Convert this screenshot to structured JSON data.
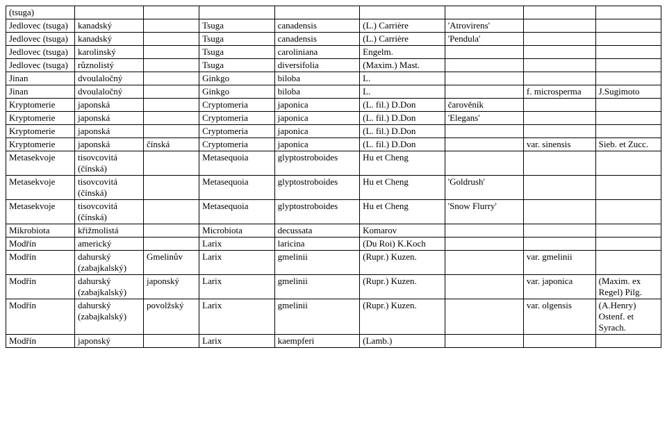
{
  "table": {
    "rows": [
      [
        "(tsuga)",
        "",
        "",
        "",
        "",
        "",
        "",
        "",
        ""
      ],
      [
        "Jedlovec (tsuga)",
        "kanadský",
        "",
        "Tsuga",
        "canadensis",
        "(L.) Carrière",
        "'Atrovirens'",
        "",
        ""
      ],
      [
        "Jedlovec (tsuga)",
        "kanadský",
        "",
        "Tsuga",
        "canadensis",
        "(L.) Carrière",
        "'Pendula'",
        "",
        ""
      ],
      [
        "Jedlovec (tsuga)",
        "karolinský",
        "",
        "Tsuga",
        "caroliniana",
        "Engelm.",
        "",
        "",
        ""
      ],
      [
        "Jedlovec (tsuga)",
        "různolistý",
        "",
        "Tsuga",
        "diversifolia",
        "(Maxim.) Mast.",
        "",
        "",
        ""
      ],
      [
        "Jinan",
        "dvoulaločný",
        "",
        "Ginkgo",
        "biloba",
        "L.",
        "",
        "",
        ""
      ],
      [
        "Jinan",
        "dvoulaločný",
        "",
        "Ginkgo",
        "biloba",
        "L.",
        "",
        "f. microsperma",
        "J.Sugimoto"
      ],
      [
        "Kryptomerie",
        "japonská",
        "",
        "Cryptomeria",
        "japonica",
        "(L. fil.) D.Don",
        "čarověník",
        "",
        ""
      ],
      [
        "Kryptomerie",
        "japonská",
        "",
        "Cryptomeria",
        "japonica",
        "(L. fil.) D.Don",
        "'Elegans'",
        "",
        ""
      ],
      [
        "Kryptomerie",
        "japonská",
        "",
        "Cryptomeria",
        "japonica",
        "(L. fil.) D.Don",
        "",
        "",
        ""
      ],
      [
        "Kryptomerie",
        "japonská",
        "čínská",
        "Cryptomeria",
        "japonica",
        "(L. fil.) D.Don",
        "",
        "var. sinensis",
        "Sieb. et Zucc."
      ],
      [
        "Metasekvoje",
        "tisovcovitá (čínská)",
        "",
        "Metasequoia",
        "glyptostroboides",
        "Hu et Cheng",
        "",
        "",
        ""
      ],
      [
        "Metasekvoje",
        "tisovcovitá (čínská)",
        "",
        "Metasequoia",
        "glyptostroboides",
        "Hu et Cheng",
        "'Goldrush'",
        "",
        ""
      ],
      [
        "Metasekvoje",
        "tisovcovitá (čínská)",
        "",
        "Metasequoia",
        "glyptostroboides",
        "Hu et Cheng",
        "'Snow Flurry'",
        "",
        ""
      ],
      [
        "Mikrobiota",
        "křižmolistá",
        "",
        "Microbiota",
        "decussata",
        "Komarov",
        "",
        "",
        ""
      ],
      [
        "Modřín",
        "americký",
        "",
        "Larix",
        "laricina",
        "(Du Roi) K.Koch",
        "",
        "",
        ""
      ],
      [
        "Modřín",
        "dahurský (zabajkalský)",
        "Gmelinův",
        "Larix",
        "gmelinii",
        "(Rupr.) Kuzen.",
        "",
        "var. gmelinii",
        ""
      ],
      [
        "Modřín",
        "dahurský (zabajkalský)",
        "japonský",
        "Larix",
        "gmelinii",
        "(Rupr.) Kuzen.",
        "",
        "var. japonica",
        "(Maxim. ex Regel) Pilg."
      ],
      [
        "Modřín",
        "dahurský (zabajkalský)",
        "povolžský",
        "Larix",
        "gmelinii",
        "(Rupr.) Kuzen.",
        "",
        "var. olgensis",
        "(A.Henry) Ostenf. et Syrach."
      ],
      [
        "Modřín",
        "japonský",
        "",
        "Larix",
        "kaempferi",
        "(Lamb.)",
        "",
        "",
        ""
      ]
    ]
  }
}
